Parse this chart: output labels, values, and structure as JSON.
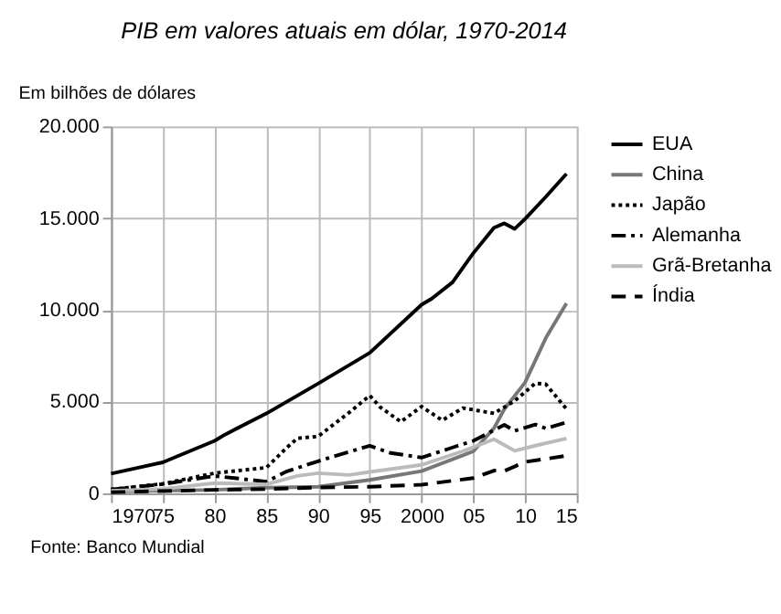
{
  "chart_data": {
    "type": "line",
    "title": "PIB em valores atuais em dólar, 1970-2014",
    "ylabel": "Em bilhões de dólares",
    "annotations": [
      "Fonte: Banco Mundial"
    ],
    "xlim": [
      1970,
      2015
    ],
    "xticks": [
      1970,
      {
        "value": 1975,
        "label": "75"
      },
      {
        "value": 1980,
        "label": "80"
      },
      {
        "value": 1985,
        "label": "85"
      },
      {
        "value": 1990,
        "label": "90"
      },
      {
        "value": 1995,
        "label": "95"
      },
      2000,
      {
        "value": 2005,
        "label": "05"
      },
      {
        "value": 2010,
        "label": "10"
      },
      {
        "value": 2015,
        "label": "15"
      }
    ],
    "ylim": [
      0,
      20000
    ],
    "yticks": [
      0,
      {
        "value": 5000,
        "label": "5.000"
      },
      {
        "value": 10000,
        "label": "10.000"
      },
      {
        "value": 15000,
        "label": "15.000"
      },
      {
        "value": 20000,
        "label": "20.000"
      }
    ],
    "grid": true,
    "legend": "right",
    "marker": "none",
    "series": [
      {
        "name": "EUA",
        "color": "#000000",
        "line_style": "solid",
        "x": [
          1970,
          1975,
          1980,
          1981,
          1985,
          1990,
          1995,
          2000,
          2001,
          2003,
          2005,
          2007,
          2008,
          2009,
          2010,
          2012,
          2014
        ],
        "values": [
          1070,
          1690,
          2860,
          3200,
          4350,
          5980,
          7660,
          10280,
          10620,
          11510,
          13090,
          14480,
          14720,
          14420,
          14960,
          16160,
          17420
        ]
      },
      {
        "name": "China",
        "color": "#777777",
        "line_style": "solid",
        "x": [
          1970,
          1980,
          1985,
          1990,
          1995,
          2000,
          2005,
          2007,
          2008,
          2010,
          2012,
          2014
        ],
        "values": [
          90,
          190,
          310,
          360,
          730,
          1210,
          2290,
          3550,
          4590,
          6040,
          8460,
          10360
        ]
      },
      {
        "name": "Japão",
        "color": "#000000",
        "line_style": "dotted",
        "x": [
          1970,
          1975,
          1980,
          1985,
          1987,
          1988,
          1990,
          1993,
          1995,
          1996,
          1998,
          2000,
          2002,
          2004,
          2007,
          2009,
          2011,
          2012,
          2014
        ],
        "values": [
          210,
          520,
          1100,
          1400,
          2500,
          3000,
          3100,
          4400,
          5330,
          4700,
          3900,
          4730,
          3980,
          4650,
          4360,
          5040,
          6000,
          5950,
          4600
        ]
      },
      {
        "name": "Alemanha",
        "color": "#000000",
        "line_style": "dashdot",
        "x": [
          1970,
          1975,
          1980,
          1985,
          1987,
          1990,
          1992,
          1995,
          1997,
          2000,
          2003,
          2005,
          2008,
          2009,
          2011,
          2012,
          2014
        ],
        "values": [
          210,
          500,
          950,
          640,
          1200,
          1750,
          2100,
          2590,
          2200,
          1950,
          2500,
          2860,
          3730,
          3410,
          3750,
          3540,
          3870
        ]
      },
      {
        "name": "Grã-Bretanha",
        "color": "#bbbbbb",
        "line_style": "solid",
        "x": [
          1970,
          1975,
          1980,
          1985,
          1988,
          1990,
          1993,
          1995,
          2000,
          2004,
          2007,
          2009,
          2011,
          2014
        ],
        "values": [
          130,
          240,
          560,
          490,
          950,
          1100,
          1000,
          1170,
          1550,
          2300,
          2950,
          2320,
          2600,
          2990
        ]
      },
      {
        "name": "Índia",
        "color": "#000000",
        "line_style": "dashed",
        "x": [
          1970,
          1980,
          1985,
          1990,
          1995,
          2000,
          2005,
          2007,
          2008,
          2010,
          2014
        ],
        "values": [
          60,
          190,
          230,
          320,
          360,
          470,
          830,
          1240,
          1220,
          1710,
          2050
        ]
      }
    ]
  }
}
